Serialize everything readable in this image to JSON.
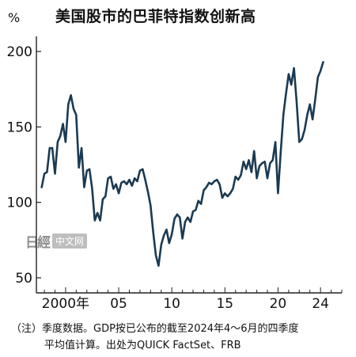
{
  "title": "美国股市的巴菲特指数创新高",
  "y_unit": "%",
  "notes": [
    "（注）季度数据。GDP按已公布的截至2024年4～6月的四季度",
    "平均值计算。出处为QUICK FactSet、FRB"
  ],
  "watermark": {
    "logo": "日經",
    "text": "中文网"
  },
  "colors": {
    "line": "#1b3a52",
    "axis": "#222222",
    "text": "#111111"
  },
  "chart_data": {
    "type": "line",
    "title": "美国股市的巴菲特指数创新高",
    "ylabel": "%",
    "ylim": [
      40,
      210
    ],
    "xlim": [
      1997.25,
      2026.0
    ],
    "grid": false,
    "legend": "none",
    "y_ticks": [
      50,
      100,
      150,
      200
    ],
    "x_ticks": [
      {
        "value": 2000,
        "label": "2000年"
      },
      {
        "value": 2005,
        "label": "05"
      },
      {
        "value": 2010,
        "label": "10"
      },
      {
        "value": 2015,
        "label": "15"
      },
      {
        "value": 2020,
        "label": "20"
      },
      {
        "value": 2024,
        "label": "24"
      }
    ],
    "series": [
      {
        "x": [
          1997.75,
          1998.0,
          1998.25,
          1998.5,
          1998.75,
          1999.0,
          1999.25,
          1999.5,
          1999.75,
          2000.0,
          2000.25,
          2000.5,
          2000.75,
          2001.0,
          2001.25,
          2001.5,
          2001.75,
          2002.0,
          2002.25,
          2002.5,
          2002.75,
          2003.0,
          2003.25,
          2003.5,
          2003.75,
          2004.0,
          2004.25,
          2004.5,
          2004.75,
          2005.0,
          2005.25,
          2005.5,
          2005.75,
          2006.0,
          2006.25,
          2006.5,
          2006.75,
          2007.0,
          2007.25,
          2007.5,
          2007.75,
          2008.0,
          2008.25,
          2008.5,
          2008.75,
          2009.0,
          2009.25,
          2009.5,
          2009.75,
          2010.0,
          2010.25,
          2010.5,
          2010.75,
          2011.0,
          2011.25,
          2011.5,
          2011.75,
          2012.0,
          2012.25,
          2012.5,
          2012.75,
          2013.0,
          2013.25,
          2013.5,
          2013.75,
          2014.0,
          2014.25,
          2014.5,
          2014.75,
          2015.0,
          2015.25,
          2015.5,
          2015.75,
          2016.0,
          2016.25,
          2016.5,
          2016.75,
          2017.0,
          2017.25,
          2017.5,
          2017.75,
          2018.0,
          2018.25,
          2018.5,
          2018.75,
          2019.0,
          2019.25,
          2019.5,
          2019.75,
          2020.0,
          2020.25,
          2020.5,
          2020.75,
          2021.0,
          2021.25,
          2021.5,
          2021.75,
          2022.0,
          2022.25,
          2022.5,
          2022.75,
          2023.0,
          2023.25,
          2023.5,
          2023.75,
          2024.0,
          2024.25
        ],
        "y": [
          110,
          119,
          120,
          136,
          136,
          119,
          140,
          144,
          152,
          140,
          165,
          171,
          162,
          158,
          123,
          136,
          110,
          121,
          122,
          109,
          88,
          93,
          88,
          102,
          104,
          116,
          117,
          109,
          112,
          106,
          113,
          114,
          112,
          115,
          111,
          116,
          114,
          121,
          122,
          115,
          107,
          98,
          80,
          65,
          58,
          72,
          78,
          82,
          73,
          79,
          89,
          92,
          90,
          76,
          87,
          90,
          87,
          94,
          95,
          101,
          99,
          108,
          110,
          113,
          112,
          114,
          115,
          112,
          103,
          106,
          104,
          106,
          109,
          117,
          115,
          118,
          127,
          122,
          128,
          120,
          134,
          116,
          124,
          126,
          127,
          116,
          126,
          128,
          140,
          106,
          133,
          158,
          172,
          185,
          178,
          189,
          167,
          140,
          142,
          148,
          158,
          165,
          155,
          168,
          183,
          187,
          193
        ]
      }
    ]
  }
}
